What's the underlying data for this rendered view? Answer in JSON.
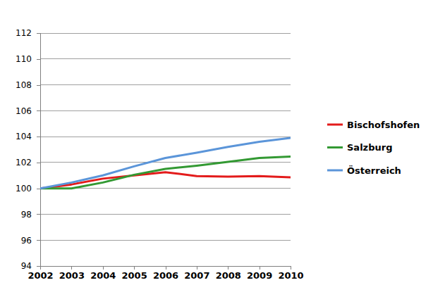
{
  "chart_data": {
    "type": "line",
    "x": [
      2002,
      2003,
      2004,
      2005,
      2006,
      2007,
      2008,
      2009,
      2010
    ],
    "xlim": [
      2002,
      2010
    ],
    "xticks": [
      2002,
      2003,
      2004,
      2005,
      2006,
      2007,
      2008,
      2009,
      2010
    ],
    "ylim": [
      94,
      112
    ],
    "yticks": [
      94,
      96,
      98,
      100,
      102,
      104,
      106,
      108,
      110,
      112
    ],
    "grid": true,
    "legend": "right",
    "series": [
      {
        "name": "Bischofshofen",
        "color": "#e31b1b",
        "values": [
          100,
          100.3,
          100.75,
          101.0,
          101.25,
          100.95,
          100.9,
          100.95,
          100.85
        ]
      },
      {
        "name": "Salzburg",
        "color": "#339933",
        "values": [
          100,
          100.0,
          100.45,
          101.05,
          101.5,
          101.75,
          102.05,
          102.35,
          102.45
        ]
      },
      {
        "name": "Österreich",
        "color": "#5b95d9",
        "values": [
          100,
          100.45,
          101.0,
          101.7,
          102.35,
          102.75,
          103.2,
          103.6,
          103.9
        ]
      }
    ]
  }
}
